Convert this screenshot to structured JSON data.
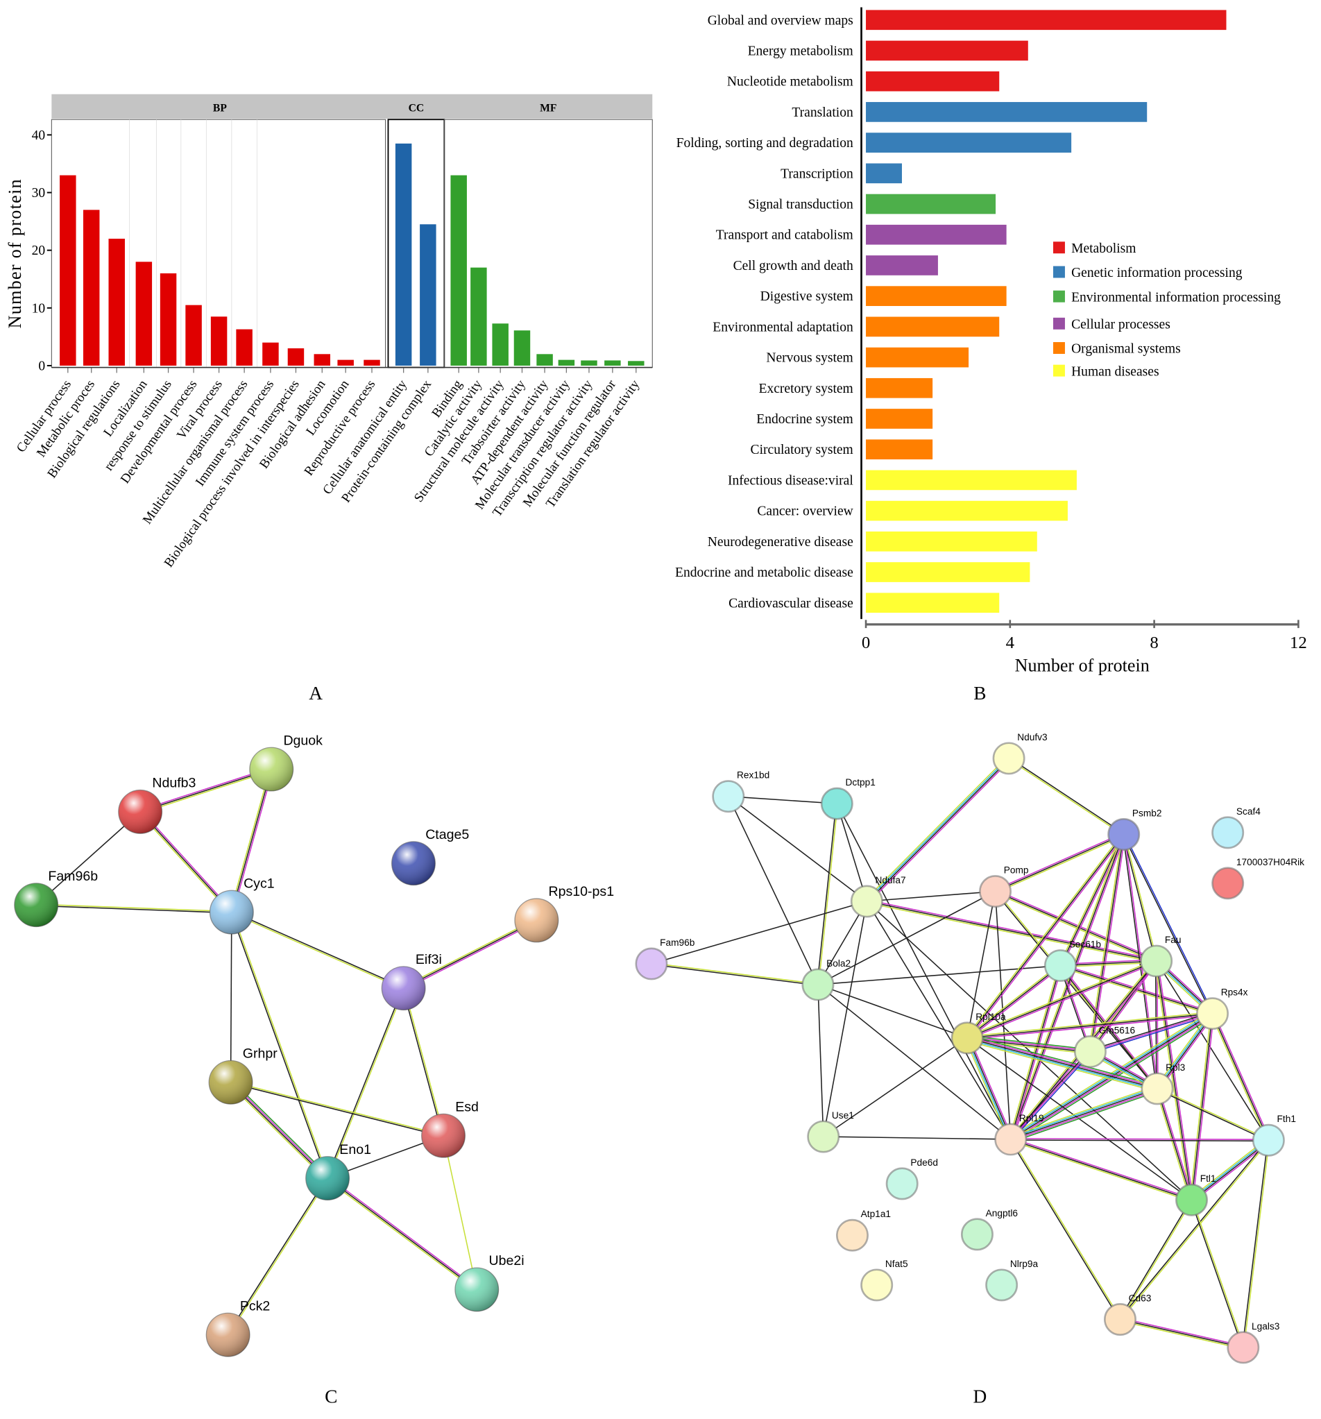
{
  "panel_labels": {
    "a": "A",
    "b": "B",
    "c": "C",
    "d": "D"
  },
  "chart_data": [
    {
      "type": "bar",
      "panel": "A",
      "ylabel": "Number of protein",
      "ylim": [
        0,
        40
      ],
      "yticks": [
        "0",
        "10",
        "20",
        "30",
        "40"
      ],
      "grid": true,
      "facets": [
        {
          "name": "BP",
          "color": "#e00000",
          "categories": [
            "Cellular process",
            "Metabolic proces",
            "Biological regulations",
            "Localization",
            "response to stimulus",
            "Developmental process",
            "Viral process",
            "Multicellular organismal process",
            "Immune system process",
            "Biological process involved in interspecies",
            "Biological adhesion",
            "Locomotion",
            "Reproductive process"
          ],
          "values": [
            33,
            27,
            22,
            18,
            16,
            10.5,
            8.5,
            6.3,
            4,
            3,
            2,
            1,
            1
          ]
        },
        {
          "name": "CC",
          "color": "#1f64a8",
          "categories": [
            "Cellular anatomical entity",
            "Protein-containing complex"
          ],
          "values": [
            38.5,
            24.5
          ]
        },
        {
          "name": "MF",
          "color": "#33a02c",
          "categories": [
            "Binding",
            "Catalytic activity",
            "Structural molecule activity",
            "Trabsoirter activity",
            "ATP-dependent activity",
            "Molecular transducer activity",
            "Transcription regulator activity",
            "Molecular function regulator",
            "Translation regulator activity"
          ],
          "values": [
            33,
            17,
            7.3,
            6.1,
            2,
            1,
            0.9,
            0.9,
            0.8
          ]
        }
      ]
    },
    {
      "type": "bar",
      "orientation": "horizontal",
      "panel": "B",
      "xlabel": "Number of protein",
      "xlim": [
        0,
        12
      ],
      "xticks": [
        "0",
        "4",
        "8",
        "12"
      ],
      "legend_position": "right",
      "legend": [
        {
          "name": "Metabolism",
          "color": "#e41a1c"
        },
        {
          "name": "Genetic information processing",
          "color": "#377eb8"
        },
        {
          "name": "Environmental information processing",
          "color": "#4daf4a"
        },
        {
          "name": "Cellular processes",
          "color": "#984ea3"
        },
        {
          "name": "Organismal systems",
          "color": "#ff7f00"
        },
        {
          "name": "Human diseases",
          "color": "#ffff33"
        }
      ],
      "categories": [
        "Global and overview maps",
        "Energy metabolism",
        "Nucleotide metabolism",
        "Translation",
        "Folding, sorting and degradation",
        "Transcription",
        "Signal transduction",
        "Transport and catabolism",
        "Cell growth and death",
        "Digestive system",
        "Environmental adaptation",
        "Nervous system",
        "Excretory system",
        "Endocrine system",
        "Circulatory system",
        "Infectious disease:viral",
        "Cancer: overview",
        "Neurodegenerative disease",
        "Endocrine and metabolic disease",
        "Cardiovascular disease"
      ],
      "groups": [
        0,
        0,
        0,
        1,
        1,
        1,
        2,
        3,
        3,
        4,
        4,
        4,
        4,
        4,
        4,
        5,
        5,
        5,
        5,
        5
      ],
      "values": [
        10,
        4.5,
        3.7,
        7.8,
        5.7,
        1,
        3.6,
        3.9,
        2,
        3.9,
        3.7,
        2.85,
        1.85,
        1.85,
        1.85,
        5.85,
        5.6,
        4.75,
        4.55,
        3.7
      ]
    }
  ],
  "network_c": {
    "nodes": [
      {
        "name": "Dguok",
        "color": "#b5d96a"
      },
      {
        "name": "Ndufb3",
        "color": "#e23a3a"
      },
      {
        "name": "Fam96b",
        "color": "#2f9a2f"
      },
      {
        "name": "Cyc1",
        "color": "#8ec3ea"
      },
      {
        "name": "Ctage5",
        "color": "#3d4fb0"
      },
      {
        "name": "Rps10-ps1",
        "color": "#f0b98a"
      },
      {
        "name": "Eif3i",
        "color": "#9b7fe0"
      },
      {
        "name": "Grhpr",
        "color": "#b0a540"
      },
      {
        "name": "Esd",
        "color": "#e05a5a"
      },
      {
        "name": "Eno1",
        "color": "#2aa79a"
      },
      {
        "name": "Ube2i",
        "color": "#6fd6b0"
      },
      {
        "name": "Pck2",
        "color": "#d9a27a"
      }
    ],
    "edges": [
      [
        "Ndufb3",
        "Dguok",
        "mky"
      ],
      [
        "Ndufb3",
        "Fam96b",
        "k"
      ],
      [
        "Ndufb3",
        "Cyc1",
        "mky"
      ],
      [
        "Dguok",
        "Cyc1",
        "mky"
      ],
      [
        "Fam96b",
        "Cyc1",
        "yk"
      ],
      [
        "Cyc1",
        "Eif3i",
        "ky"
      ],
      [
        "Cyc1",
        "Grhpr",
        "k"
      ],
      [
        "Cyc1",
        "Eno1",
        "yk"
      ],
      [
        "Rps10-ps1",
        "Eif3i",
        "mky"
      ],
      [
        "Eif3i",
        "Eno1",
        "yk"
      ],
      [
        "Eif3i",
        "Esd",
        "yk"
      ],
      [
        "Grhpr",
        "Esd",
        "yk"
      ],
      [
        "Grhpr",
        "Eno1",
        "gmky"
      ],
      [
        "Esd",
        "Eno1",
        "k"
      ],
      [
        "Esd",
        "Ube2i",
        "y"
      ],
      [
        "Eno1",
        "Ube2i",
        "mky"
      ],
      [
        "Eno1",
        "Pck2",
        "yk"
      ]
    ]
  },
  "network_d": {
    "nodes": [
      {
        "name": "Ndufv3",
        "color": "#fdfdc8"
      },
      {
        "name": "Rex1bd",
        "color": "#c9f7f7"
      },
      {
        "name": "Dctpp1",
        "color": "#86e6dc"
      },
      {
        "name": "Psmb2",
        "color": "#8c96e2"
      },
      {
        "name": "Scaf4",
        "color": "#bdf0fa"
      },
      {
        "name": "1700037H04Rik",
        "color": "#f58080"
      },
      {
        "name": "Ndufa7",
        "color": "#ecfac6"
      },
      {
        "name": "Pomp",
        "color": "#fbd2c4"
      },
      {
        "name": "Fam96b",
        "color": "#dcc3f7"
      },
      {
        "name": "Bola2",
        "color": "#c6f5c3"
      },
      {
        "name": "Sec61b",
        "color": "#bdf7e2"
      },
      {
        "name": "Fau",
        "color": "#cff5c0"
      },
      {
        "name": "Rps4x",
        "color": "#fdfcc8"
      },
      {
        "name": "Rpl10a",
        "color": "#e6e27e"
      },
      {
        "name": "Gm5616",
        "color": "#e8fac6"
      },
      {
        "name": "Rpl3",
        "color": "#fdf8cc"
      },
      {
        "name": "Use1",
        "color": "#ddf7c4"
      },
      {
        "name": "Rpl19",
        "color": "#fde0cc"
      },
      {
        "name": "Fth1",
        "color": "#c9f8f8"
      },
      {
        "name": "Ftl1",
        "color": "#86e486"
      },
      {
        "name": "Pde6d",
        "color": "#c6f7e6"
      },
      {
        "name": "Atp1a1",
        "color": "#fde6c6"
      },
      {
        "name": "Angptl6",
        "color": "#c6f5cf"
      },
      {
        "name": "Nfat5",
        "color": "#fdfcc8"
      },
      {
        "name": "Nlrp9a",
        "color": "#c6f7dc"
      },
      {
        "name": "Cd63",
        "color": "#fde2c0"
      },
      {
        "name": "Lgals3",
        "color": "#fcc4c6"
      }
    ],
    "edges": [
      [
        "Rex1bd",
        "Dctpp1",
        "k"
      ],
      [
        "Rex1bd",
        "Ndufa7",
        "k"
      ],
      [
        "Rex1bd",
        "Bola2",
        "k"
      ],
      [
        "Dctpp1",
        "Bola2",
        "yk"
      ],
      [
        "Dctpp1",
        "Ndufa7",
        "k"
      ],
      [
        "Dctpp1",
        "Rpl19",
        "k"
      ],
      [
        "Ndufv3",
        "Ndufa7",
        "mkcy"
      ],
      [
        "Ndufv3",
        "Psmb2",
        "ky"
      ],
      [
        "Ndufa7",
        "Pomp",
        "k"
      ],
      [
        "Ndufa7",
        "Fam96b",
        "k"
      ],
      [
        "Ndufa7",
        "Bola2",
        "k"
      ],
      [
        "Ndufa7",
        "Use1",
        "k"
      ],
      [
        "Ndufa7",
        "Fau",
        "mky"
      ],
      [
        "Ndufa7",
        "Rpl19",
        "k"
      ],
      [
        "Ndufa7",
        "Ftl1",
        "k"
      ],
      [
        "Pomp",
        "Bola2",
        "k"
      ],
      [
        "Pomp",
        "Psmb2",
        "mky"
      ],
      [
        "Pomp",
        "Fau",
        "mky"
      ],
      [
        "Pomp",
        "Rpl10a",
        "k"
      ],
      [
        "Pomp",
        "Rpl19",
        "k"
      ],
      [
        "Pomp",
        "Rpl3",
        "yk"
      ],
      [
        "Fam96b",
        "Bola2",
        "yk"
      ],
      [
        "Bola2",
        "Sec61b",
        "k"
      ],
      [
        "Bola2",
        "Rpl10a",
        "k"
      ],
      [
        "Bola2",
        "Use1",
        "k"
      ],
      [
        "Bola2",
        "Rpl19",
        "k"
      ],
      [
        "Use1",
        "Rpl10a",
        "k"
      ],
      [
        "Use1",
        "Rpl19",
        "k"
      ],
      [
        "Psmb2",
        "Rpl10a",
        "mky"
      ],
      [
        "Psmb2",
        "Sec61b",
        "mky"
      ],
      [
        "Psmb2",
        "Gm5616",
        "mky"
      ],
      [
        "Psmb2",
        "Fau",
        "yk"
      ],
      [
        "Psmb2",
        "Rps4x",
        "bk"
      ],
      [
        "Psmb2",
        "Rpl3",
        "mk"
      ],
      [
        "Psmb2",
        "Rpl19",
        "mky"
      ],
      [
        "Sec61b",
        "Fau",
        "mky"
      ],
      [
        "Sec61b",
        "Rps4x",
        "mky"
      ],
      [
        "Sec61b",
        "Rpl10a",
        "mky"
      ],
      [
        "Sec61b",
        "Rpl19",
        "mky"
      ],
      [
        "Sec61b",
        "Rpl3",
        "mk"
      ],
      [
        "Sec61b",
        "Gm5616",
        "mk"
      ],
      [
        "Fau",
        "Rpl10a",
        "mky"
      ],
      [
        "Fau",
        "Rps4x",
        "mkcy"
      ],
      [
        "Fau",
        "Gm5616",
        "mky"
      ],
      [
        "Fau",
        "Rpl3",
        "mk"
      ],
      [
        "Fau",
        "Rpl19",
        "mky"
      ],
      [
        "Fau",
        "Ftl1",
        "mky"
      ],
      [
        "Fau",
        "Fth1",
        "k"
      ],
      [
        "Rps4x",
        "Rpl10a",
        "mky"
      ],
      [
        "Rps4x",
        "Gm5616",
        "bmk"
      ],
      [
        "Rps4x",
        "Rpl3",
        "mkcy"
      ],
      [
        "Rps4x",
        "Rpl19",
        "gmkcy"
      ],
      [
        "Rps4x",
        "Ftl1",
        "mky"
      ],
      [
        "Rps4x",
        "Fth1",
        "mky"
      ],
      [
        "Rpl10a",
        "Gm5616",
        "gmky"
      ],
      [
        "Rpl10a",
        "Rpl3",
        "gmkcy"
      ],
      [
        "Rpl10a",
        "Rpl19",
        "mkcy"
      ],
      [
        "Rpl10a",
        "Ftl1",
        "k"
      ],
      [
        "Gm5616",
        "Rpl3",
        "mkcy"
      ],
      [
        "Gm5616",
        "Rpl19",
        "bmk"
      ],
      [
        "Rpl3",
        "Rpl19",
        "gmkcy"
      ],
      [
        "Rpl3",
        "Ftl1",
        "mky"
      ],
      [
        "Rpl3",
        "Fth1",
        "yk"
      ],
      [
        "Rpl19",
        "Fth1",
        "mk"
      ],
      [
        "Rpl19",
        "Ftl1",
        "mky"
      ],
      [
        "Rpl19",
        "Cd63",
        "yk"
      ],
      [
        "Fth1",
        "Ftl1",
        "mkcy"
      ],
      [
        "Fth1",
        "Cd63",
        "yk"
      ],
      [
        "Fth1",
        "Lgals3",
        "yk"
      ],
      [
        "Ftl1",
        "Cd63",
        "yk"
      ],
      [
        "Ftl1",
        "Lgals3",
        "yk"
      ],
      [
        "Cd63",
        "Lgals3",
        "mky"
      ]
    ]
  }
}
